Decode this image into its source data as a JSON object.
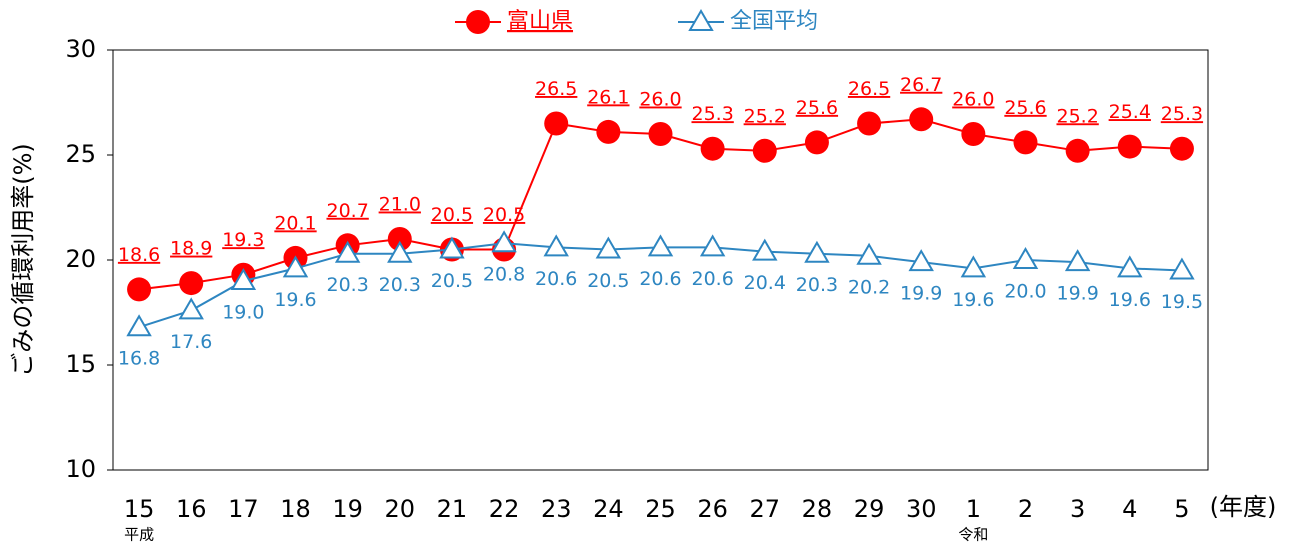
{
  "chart_data": {
    "type": "line",
    "y_label": "ごみの循環利用率(%)",
    "x_label": "(年度)",
    "categories": [
      "15",
      "16",
      "17",
      "18",
      "19",
      "20",
      "21",
      "22",
      "23",
      "24",
      "25",
      "26",
      "27",
      "28",
      "29",
      "30",
      "1",
      "2",
      "3",
      "4",
      "5"
    ],
    "sublabels": [
      "平成",
      null,
      null,
      null,
      null,
      null,
      null,
      null,
      null,
      null,
      null,
      null,
      null,
      null,
      null,
      null,
      "令和",
      null,
      null,
      null,
      null
    ],
    "ylim": [
      10,
      30
    ],
    "yticks": [
      10,
      15,
      20,
      25,
      30
    ],
    "grid": false,
    "legend": "top",
    "series": [
      {
        "name": "富山県",
        "color": "#ff0000",
        "marker": "circle",
        "values": [
          18.6,
          18.9,
          19.3,
          20.1,
          20.7,
          21.0,
          20.5,
          20.5,
          26.5,
          26.1,
          26.0,
          25.3,
          25.2,
          25.6,
          26.5,
          26.7,
          26.0,
          25.6,
          25.2,
          25.4,
          25.3
        ],
        "value_labels": [
          "18.6",
          "18.9",
          "19.3",
          "20.1",
          "20.7",
          "21.0",
          "20.5",
          "20.5",
          "26.5",
          "26.1",
          "26.0",
          "25.3",
          "25.2",
          "25.6",
          "26.5",
          "26.7",
          "26.0",
          "25.6",
          "25.2",
          "25.4",
          "25.3"
        ]
      },
      {
        "name": "全国平均",
        "color": "#2e86c1",
        "marker": "triangle",
        "values": [
          16.8,
          17.6,
          19.0,
          19.6,
          20.3,
          20.3,
          20.5,
          20.8,
          20.6,
          20.5,
          20.6,
          20.6,
          20.4,
          20.3,
          20.2,
          19.9,
          19.6,
          20.0,
          19.9,
          19.6,
          19.5
        ],
        "value_labels": [
          "16.8",
          "17.6",
          "19.0",
          "19.6",
          "20.3",
          "20.3",
          "20.5",
          "20.8",
          "20.6",
          "20.5",
          "20.6",
          "20.6",
          "20.4",
          "20.3",
          "20.2",
          "19.9",
          "19.6",
          "20.0",
          "19.9",
          "19.6",
          "19.5"
        ]
      }
    ]
  }
}
